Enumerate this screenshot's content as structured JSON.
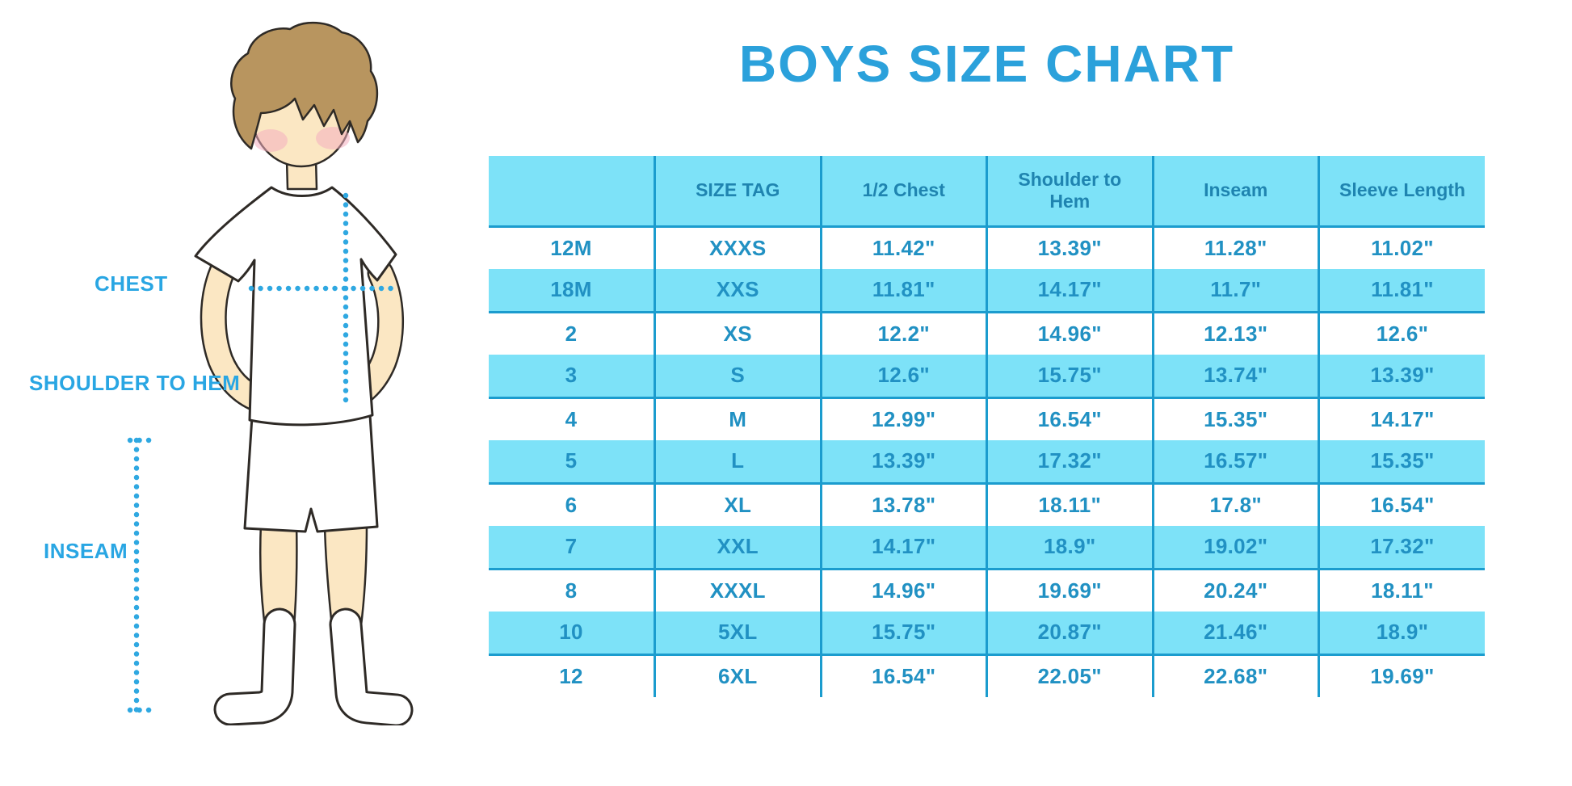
{
  "title": "BOYS SIZE CHART",
  "diagram": {
    "labels": {
      "chest": "CHEST",
      "shoulder_to_hem": "SHOULDER TO HEM",
      "inseam": "INSEAM"
    }
  },
  "chart_data": {
    "type": "table",
    "title": "BOYS SIZE CHART",
    "columns": [
      "",
      "SIZE TAG",
      "1/2 Chest",
      "Shoulder to Hem",
      "Inseam",
      "Sleeve Length"
    ],
    "rows": [
      [
        "12M",
        "XXXS",
        "11.42\"",
        "13.39\"",
        "11.28\"",
        "11.02\""
      ],
      [
        "18M",
        "XXS",
        "11.81\"",
        "14.17\"",
        "11.7\"",
        "11.81\""
      ],
      [
        "2",
        "XS",
        "12.2\"",
        "14.96\"",
        "12.13\"",
        "12.6\""
      ],
      [
        "3",
        "S",
        "12.6\"",
        "15.75\"",
        "13.74\"",
        "13.39\""
      ],
      [
        "4",
        "M",
        "12.99\"",
        "16.54\"",
        "15.35\"",
        "14.17\""
      ],
      [
        "5",
        "L",
        "13.39\"",
        "17.32\"",
        "16.57\"",
        "15.35\""
      ],
      [
        "6",
        "XL",
        "13.78\"",
        "18.11\"",
        "17.8\"",
        "16.54\""
      ],
      [
        "7",
        "XXL",
        "14.17\"",
        "18.9\"",
        "19.02\"",
        "17.32\""
      ],
      [
        "8",
        "XXXL",
        "14.96\"",
        "19.69\"",
        "20.24\"",
        "18.11\""
      ],
      [
        "10",
        "5XL",
        "15.75\"",
        "20.87\"",
        "21.46\"",
        "18.9\""
      ],
      [
        "12",
        "6XL",
        "16.54\"",
        "22.05\"",
        "22.68\"",
        "19.69\""
      ]
    ],
    "layout": {
      "zebra_start": "white",
      "stripe_rows": "even data rows (18M, 3, 5, 7, 10)"
    }
  },
  "colors": {
    "title": "#2BA1DB",
    "label": "#29A6E3",
    "stripe": "#7DE2F8",
    "table_line": "#1B9CCE",
    "header_text": "#1F84B0",
    "cell_text": "#2191C3",
    "skin": "#FBE7C3",
    "hair": "#B8955F",
    "cheek": "#F4AFC0",
    "outline": "#2E2A26",
    "dots": "#2FA8E1",
    "background": "#FFFFFF"
  }
}
